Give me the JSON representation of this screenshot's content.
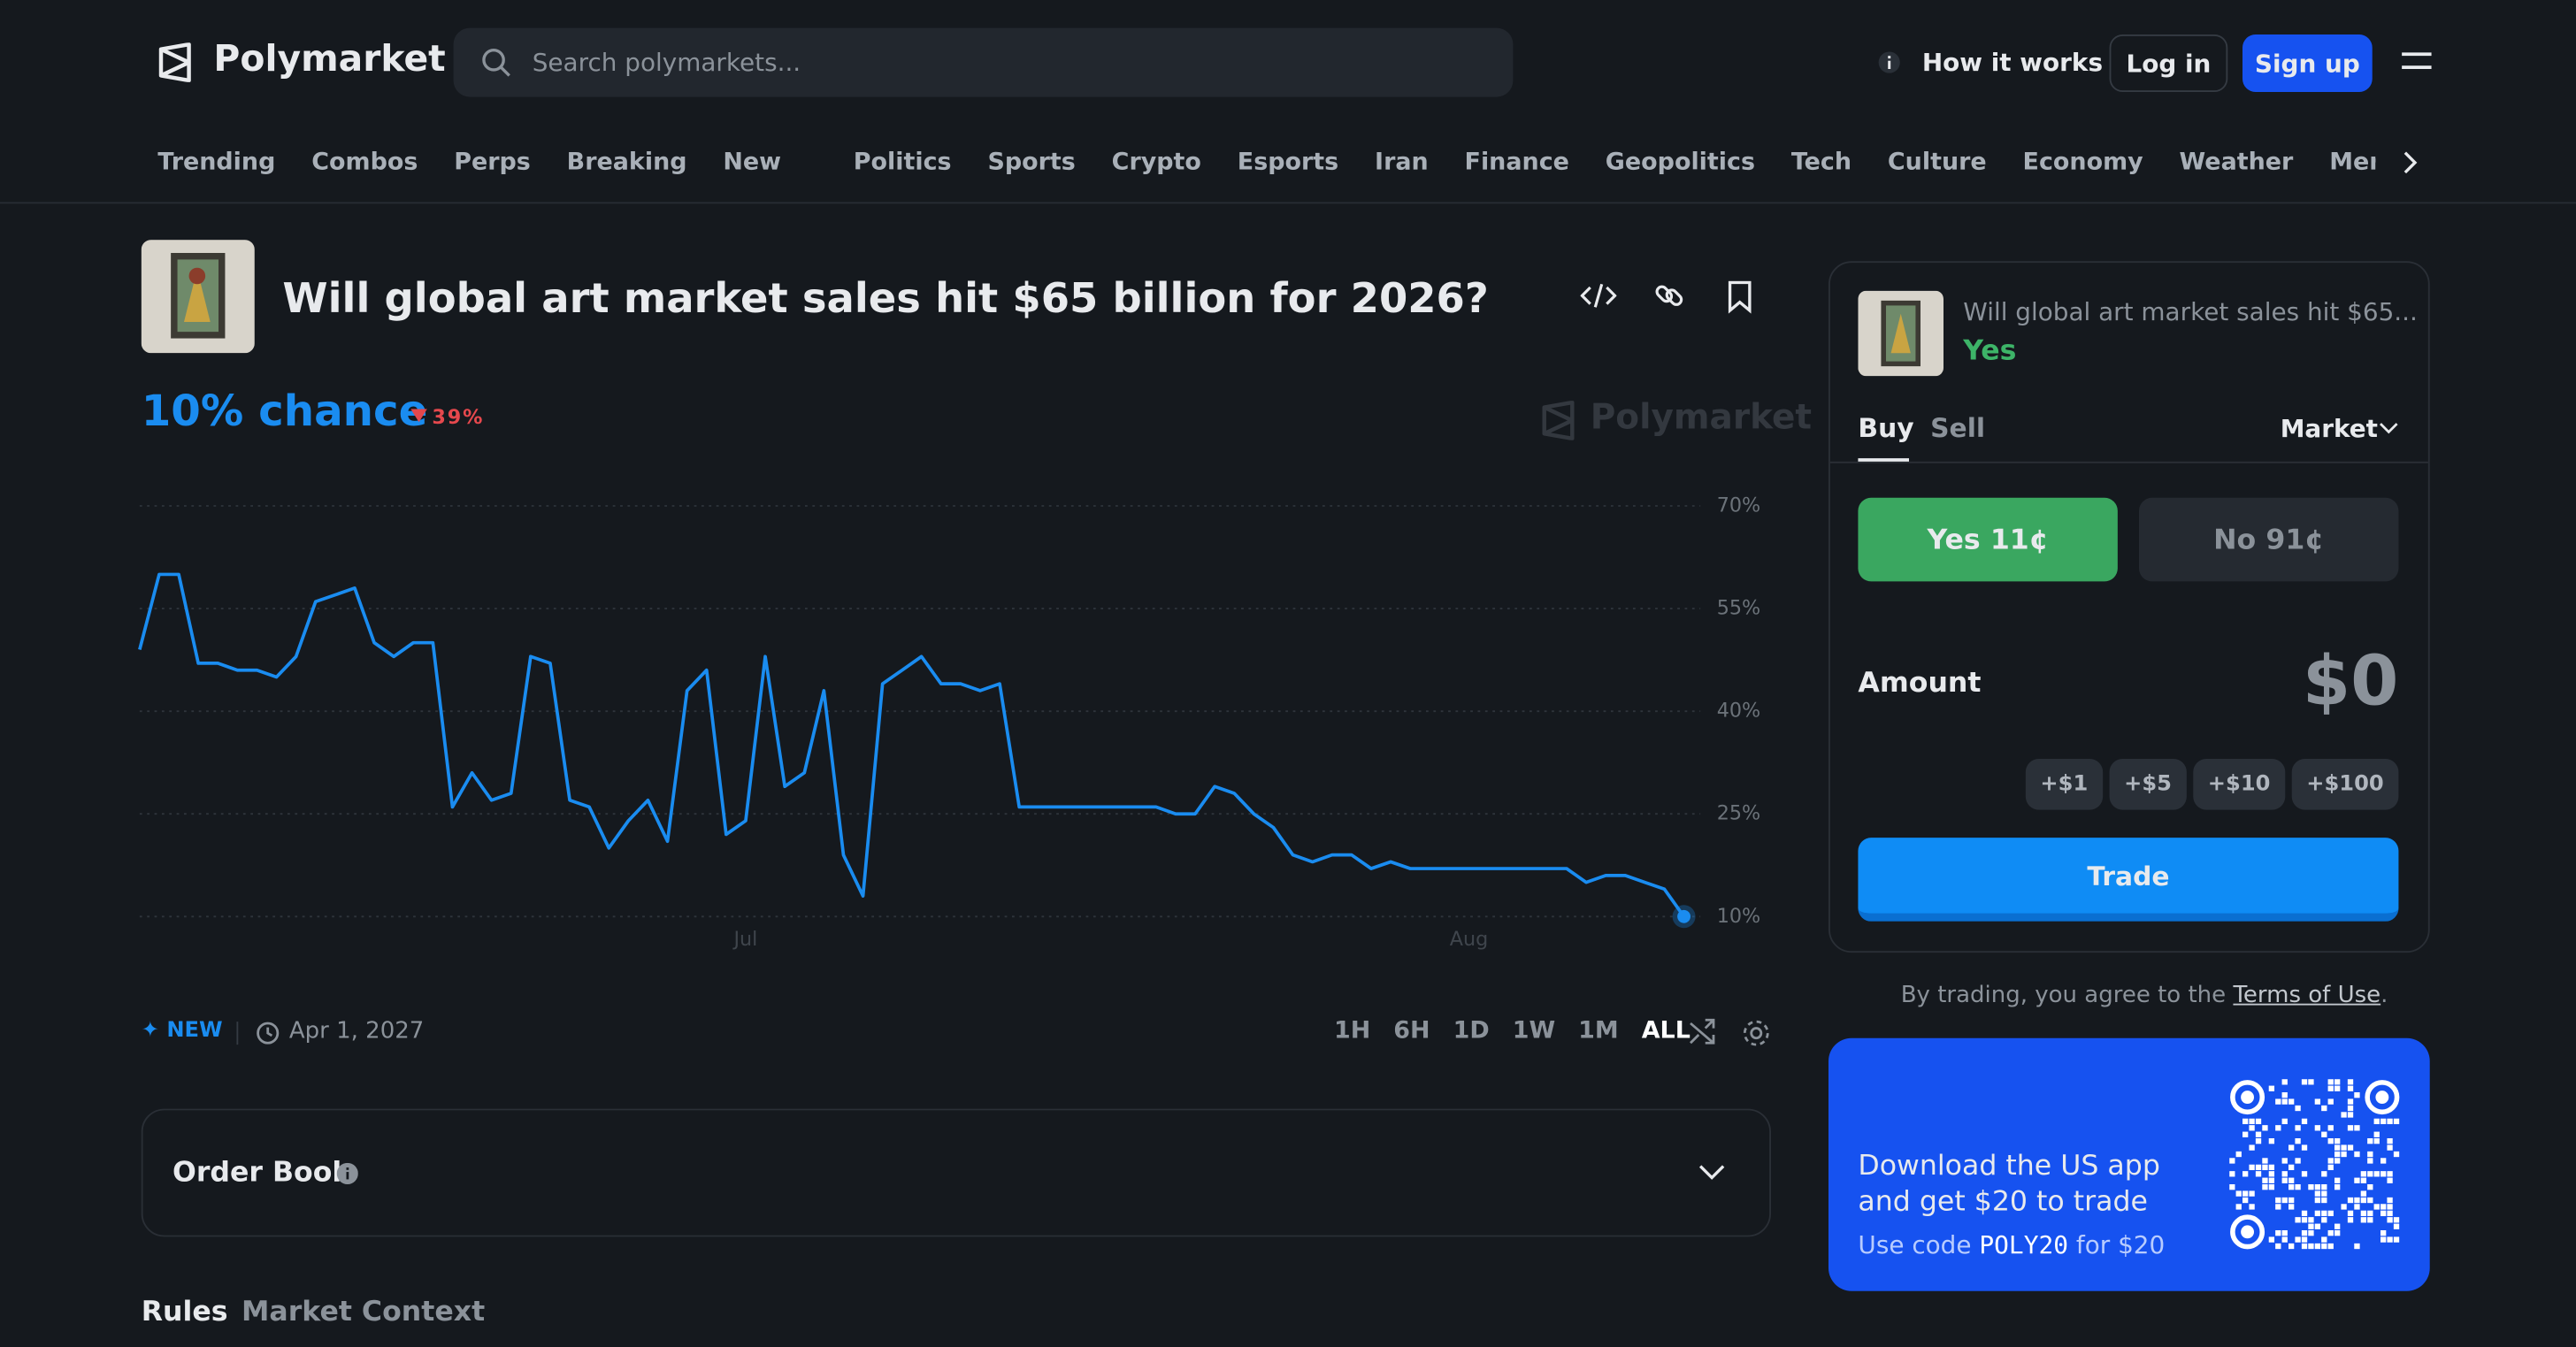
{
  "header": {
    "logo": "Polymarket",
    "search_placeholder": "Search polymarkets...",
    "how_it_works": "How it works",
    "login": "Log in",
    "signup": "Sign up"
  },
  "nav": {
    "primary": [
      "Trending",
      "Combos",
      "Perps",
      "Breaking",
      "New"
    ],
    "topics": [
      "Politics",
      "Sports",
      "Crypto",
      "Esports",
      "Iran",
      "Finance",
      "Geopolitics",
      "Tech",
      "Culture",
      "Economy",
      "Weather",
      "Mentions"
    ]
  },
  "market": {
    "title": "Will global art market sales hit $65 billion for 2026?",
    "chance": "10% chance",
    "change": "39%",
    "watermark": "Polymarket",
    "badge": "NEW",
    "end_date": "Apr 1, 2027",
    "ranges": [
      "1H",
      "6H",
      "1D",
      "1W",
      "1M",
      "ALL"
    ]
  },
  "chart_data": {
    "type": "line",
    "color": "#1a8cf0",
    "categories": [
      null,
      null,
      null,
      null,
      null,
      null,
      null,
      null,
      null,
      null,
      null,
      null,
      null,
      null,
      null,
      null,
      null,
      null,
      null,
      null,
      null,
      null,
      null,
      null,
      null,
      null,
      null,
      null,
      null,
      null,
      null,
      "Jul",
      null,
      null,
      null,
      null,
      null,
      null,
      null,
      null,
      null,
      null,
      null,
      null,
      null,
      null,
      null,
      null,
      null,
      null,
      null,
      null,
      null,
      null,
      null,
      null,
      null,
      null,
      null,
      null,
      null,
      null,
      null,
      null,
      null,
      null,
      null,
      null,
      "Aug",
      null,
      null,
      null,
      null,
      null,
      null,
      null,
      null,
      null,
      null,
      null
    ],
    "values": [
      49,
      60,
      60,
      47,
      47,
      46,
      46,
      45,
      48,
      56,
      57,
      58,
      50,
      48,
      50,
      50,
      26,
      31,
      27,
      28,
      48,
      47,
      27,
      26,
      20,
      24,
      27,
      21,
      43,
      46,
      22,
      24,
      48,
      29,
      31,
      43,
      19,
      13,
      44,
      46,
      48,
      44,
      44,
      43,
      44,
      26,
      26,
      26,
      26,
      26,
      26,
      26,
      26,
      25,
      25,
      29,
      28,
      25,
      23,
      19,
      18,
      19,
      19,
      17,
      18,
      17,
      17,
      17,
      17,
      17,
      17,
      17,
      17,
      17,
      15,
      16,
      16,
      15,
      14,
      10
    ],
    "ylim": [
      10,
      70
    ],
    "yticks": [
      {
        "value": 10,
        "label": "10%"
      },
      {
        "value": 25,
        "label": "25%"
      },
      {
        "value": 40,
        "label": "40%"
      },
      {
        "value": 55,
        "label": "55%"
      },
      {
        "value": 70,
        "label": "70%"
      }
    ],
    "grid": true
  },
  "order_book": "Order Book",
  "tabs": [
    "Rules",
    "Market Context"
  ],
  "trade": {
    "market_title": "Will global art market sales hit $65...",
    "outcome": "Yes",
    "sides": [
      "Buy",
      "Sell"
    ],
    "order_type": "Market",
    "yes_label": "Yes",
    "yes_price": "11¢",
    "no_label": "No",
    "no_price": "91¢",
    "amount_label": "Amount",
    "amount": "$0",
    "quick_adds": [
      "+$1",
      "+$5",
      "+$10",
      "+$100"
    ],
    "submit": "Trade",
    "terms_prefix": "By trading, you agree to the",
    "terms_link": "Terms of Use",
    "terms_suffix": "."
  },
  "promo": {
    "line1": "Download the US app",
    "line2": "and get $20 to trade",
    "code_prefix": "Use code",
    "code": "POLY20",
    "code_suffix": "for $20"
  }
}
